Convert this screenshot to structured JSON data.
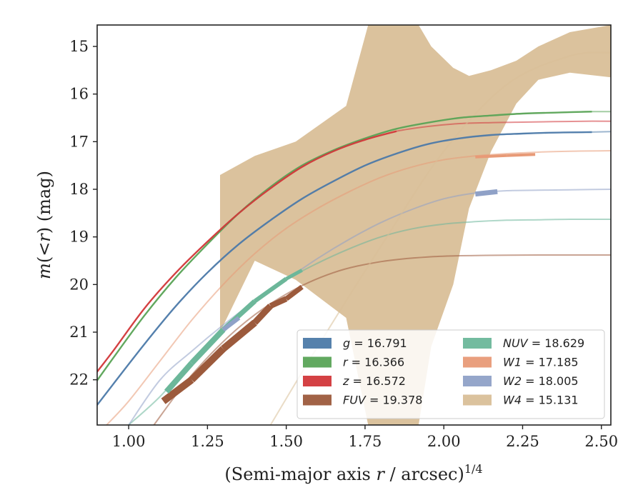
{
  "chart_data": {
    "type": "line",
    "xlabel_main": "(Semi-major axis ",
    "xlabel_r": "r",
    "xlabel_unit": " / arcsec)",
    "xlabel_sup": "1/4",
    "ylabel_m": "m",
    "ylabel_open": "(<",
    "ylabel_r": "r",
    "ylabel_close": ") (mag)",
    "xlim": [
      0.9,
      2.53
    ],
    "ylim": [
      22.95,
      14.55
    ],
    "inverted_y": true,
    "xticks": [
      1.0,
      1.25,
      1.5,
      1.75,
      2.0,
      2.25,
      2.5
    ],
    "xtick_labels": [
      "1.00",
      "1.25",
      "1.50",
      "1.75",
      "2.00",
      "2.25",
      "2.50"
    ],
    "yticks": [
      15,
      16,
      17,
      18,
      19,
      20,
      21,
      22
    ],
    "ytick_labels": [
      "15",
      "16",
      "17",
      "18",
      "19",
      "20",
      "21",
      "22"
    ],
    "grid": false,
    "legend_position": "lower-right",
    "legend_columns": 2,
    "series": [
      {
        "name": "g",
        "value_text": "16.791",
        "color": "#4c7aa8",
        "kind": "curve",
        "faint_x": [
          0.88,
          0.95,
          1.05,
          1.15,
          1.25,
          1.35,
          1.45,
          1.55,
          1.65,
          1.75,
          1.85,
          1.95,
          2.05,
          2.15,
          2.25,
          2.35,
          2.45,
          2.53
        ],
        "faint_y": [
          22.7,
          22.1,
          21.25,
          20.45,
          19.75,
          19.15,
          18.65,
          18.2,
          17.83,
          17.5,
          17.25,
          17.05,
          16.93,
          16.86,
          16.83,
          16.81,
          16.8,
          16.79
        ],
        "strong_x": [
          0.88,
          0.95,
          1.05,
          1.15,
          1.25,
          1.35,
          1.45,
          1.55,
          1.65,
          1.75,
          1.85,
          1.95,
          2.05,
          2.15,
          2.25,
          2.35,
          2.47
        ],
        "strong_y": [
          22.7,
          22.1,
          21.25,
          20.45,
          19.75,
          19.15,
          18.65,
          18.2,
          17.83,
          17.5,
          17.25,
          17.05,
          16.93,
          16.86,
          16.83,
          16.81,
          16.8
        ]
      },
      {
        "name": "r",
        "value_text": "16.366",
        "color": "#5aa457",
        "kind": "curve",
        "faint_x": [
          0.88,
          0.95,
          1.05,
          1.15,
          1.25,
          1.35,
          1.45,
          1.55,
          1.65,
          1.75,
          1.85,
          1.95,
          2.05,
          2.15,
          2.25,
          2.35,
          2.45,
          2.53
        ],
        "faint_y": [
          22.2,
          21.55,
          20.65,
          19.85,
          19.15,
          18.5,
          17.95,
          17.5,
          17.18,
          16.93,
          16.73,
          16.6,
          16.5,
          16.45,
          16.41,
          16.39,
          16.37,
          16.37
        ],
        "strong_x": [
          0.88,
          0.95,
          1.05,
          1.15,
          1.25,
          1.35,
          1.45,
          1.55,
          1.65,
          1.75,
          1.85,
          1.95,
          2.05,
          2.15,
          2.25,
          2.35,
          2.47
        ],
        "strong_y": [
          22.2,
          21.55,
          20.65,
          19.85,
          19.15,
          18.5,
          17.95,
          17.5,
          17.18,
          16.93,
          16.73,
          16.6,
          16.5,
          16.45,
          16.41,
          16.39,
          16.37
        ]
      },
      {
        "name": "z",
        "value_text": "16.572",
        "color": "#d2373a",
        "kind": "curve",
        "faint_x": [
          0.88,
          0.95,
          1.05,
          1.15,
          1.25,
          1.35,
          1.45,
          1.55,
          1.65,
          1.75,
          1.85,
          1.95,
          2.05,
          2.15,
          2.25,
          2.35,
          2.45,
          2.53
        ],
        "faint_y": [
          22.0,
          21.4,
          20.5,
          19.75,
          19.1,
          18.5,
          17.98,
          17.53,
          17.2,
          16.96,
          16.78,
          16.68,
          16.62,
          16.6,
          16.59,
          16.58,
          16.57,
          16.57
        ],
        "strong_x": [
          0.88,
          0.95,
          1.05,
          1.15,
          1.25,
          1.35,
          1.45,
          1.55,
          1.65,
          1.75,
          1.85
        ],
        "strong_y": [
          22.0,
          21.4,
          20.5,
          19.75,
          19.1,
          18.5,
          17.98,
          17.53,
          17.2,
          16.96,
          16.78
        ]
      },
      {
        "name": "FUV",
        "value_text": "19.378",
        "color": "#9c5a3c",
        "kind": "curve",
        "faint_x": [
          1.08,
          1.2,
          1.35,
          1.5,
          1.65,
          1.8,
          1.95,
          2.1,
          2.3,
          2.53
        ],
        "faint_y": [
          22.95,
          21.9,
          20.9,
          20.2,
          19.75,
          19.52,
          19.42,
          19.39,
          19.38,
          19.38
        ],
        "strong_x": [
          1.11,
          1.2,
          1.3,
          1.4,
          1.45,
          1.5,
          1.55
        ],
        "strong_y": [
          22.45,
          22.0,
          21.35,
          20.8,
          20.45,
          20.3,
          20.05
        ],
        "band_width": [
          10,
          10,
          10,
          9,
          8,
          7,
          6
        ]
      },
      {
        "name": "NUV",
        "value_text": "18.629",
        "color": "#6cb79a",
        "kind": "curve",
        "faint_x": [
          1.0,
          1.1,
          1.2,
          1.3,
          1.4,
          1.5,
          1.6,
          1.7,
          1.8,
          1.9,
          2.0,
          2.1,
          2.2,
          2.3,
          2.4,
          2.53
        ],
        "faint_y": [
          22.95,
          22.35,
          21.6,
          20.95,
          20.35,
          19.9,
          19.55,
          19.25,
          19.0,
          18.83,
          18.73,
          18.68,
          18.65,
          18.64,
          18.63,
          18.63
        ],
        "strong_x": [
          1.12,
          1.2,
          1.3,
          1.4,
          1.5,
          1.55
        ],
        "strong_y": [
          22.25,
          21.65,
          20.95,
          20.35,
          19.88,
          19.7
        ],
        "band_width": [
          8,
          8,
          7,
          6,
          5,
          4
        ]
      },
      {
        "name": "W1",
        "value_text": "17.185",
        "color": "#e89a77",
        "kind": "curve",
        "faint_x": [
          0.93,
          1.0,
          1.1,
          1.2,
          1.3,
          1.4,
          1.5,
          1.6,
          1.7,
          1.8,
          1.9,
          2.0,
          2.1,
          2.2,
          2.3,
          2.4,
          2.53
        ],
        "faint_y": [
          22.95,
          22.45,
          21.6,
          20.75,
          20.0,
          19.35,
          18.82,
          18.4,
          18.05,
          17.75,
          17.53,
          17.38,
          17.3,
          17.25,
          17.22,
          17.2,
          17.19
        ],
        "strong_x": [
          2.1,
          2.2,
          2.29
        ],
        "strong_y": [
          17.32,
          17.29,
          17.27
        ],
        "band_width": [
          4,
          4,
          4
        ]
      },
      {
        "name": "W2",
        "value_text": "18.005",
        "color": "#8fa1c7",
        "kind": "curve",
        "faint_x": [
          1.0,
          1.1,
          1.2,
          1.3,
          1.4,
          1.5,
          1.6,
          1.7,
          1.8,
          1.9,
          2.0,
          2.1,
          2.2,
          2.3,
          2.4,
          2.53
        ],
        "faint_y": [
          22.95,
          22.0,
          21.4,
          20.85,
          20.35,
          19.9,
          19.45,
          19.05,
          18.7,
          18.42,
          18.2,
          18.08,
          18.03,
          18.02,
          18.01,
          18.0
        ],
        "strong_x": [
          1.3,
          1.35,
          2.1,
          2.17
        ],
        "strong_y": [
          20.95,
          20.7,
          18.1,
          18.05
        ],
        "band_width": [
          6,
          5,
          7,
          7
        ]
      },
      {
        "name": "W4",
        "value_text": "15.131",
        "color": "#d9bf98",
        "kind": "band",
        "faint_x": [
          1.45,
          1.6,
          1.8,
          2.0,
          2.2,
          2.4,
          2.53
        ],
        "faint_y": [
          22.95,
          21.3,
          19.2,
          17.2,
          15.8,
          15.2,
          15.13
        ],
        "band_x": [
          1.29,
          1.4,
          1.53,
          1.69,
          1.76,
          1.92,
          1.96,
          2.03,
          2.08,
          2.15,
          2.23,
          2.3,
          2.4,
          2.53
        ],
        "band_upper": [
          17.7,
          17.3,
          17.0,
          16.25,
          14.55,
          14.55,
          15.0,
          15.45,
          15.62,
          15.5,
          15.3,
          15.0,
          14.7,
          14.55
        ],
        "band_lower": [
          21.0,
          19.5,
          19.9,
          20.7,
          22.95,
          22.95,
          21.3,
          20.0,
          18.4,
          17.2,
          16.2,
          15.7,
          15.55,
          15.65
        ]
      }
    ]
  }
}
